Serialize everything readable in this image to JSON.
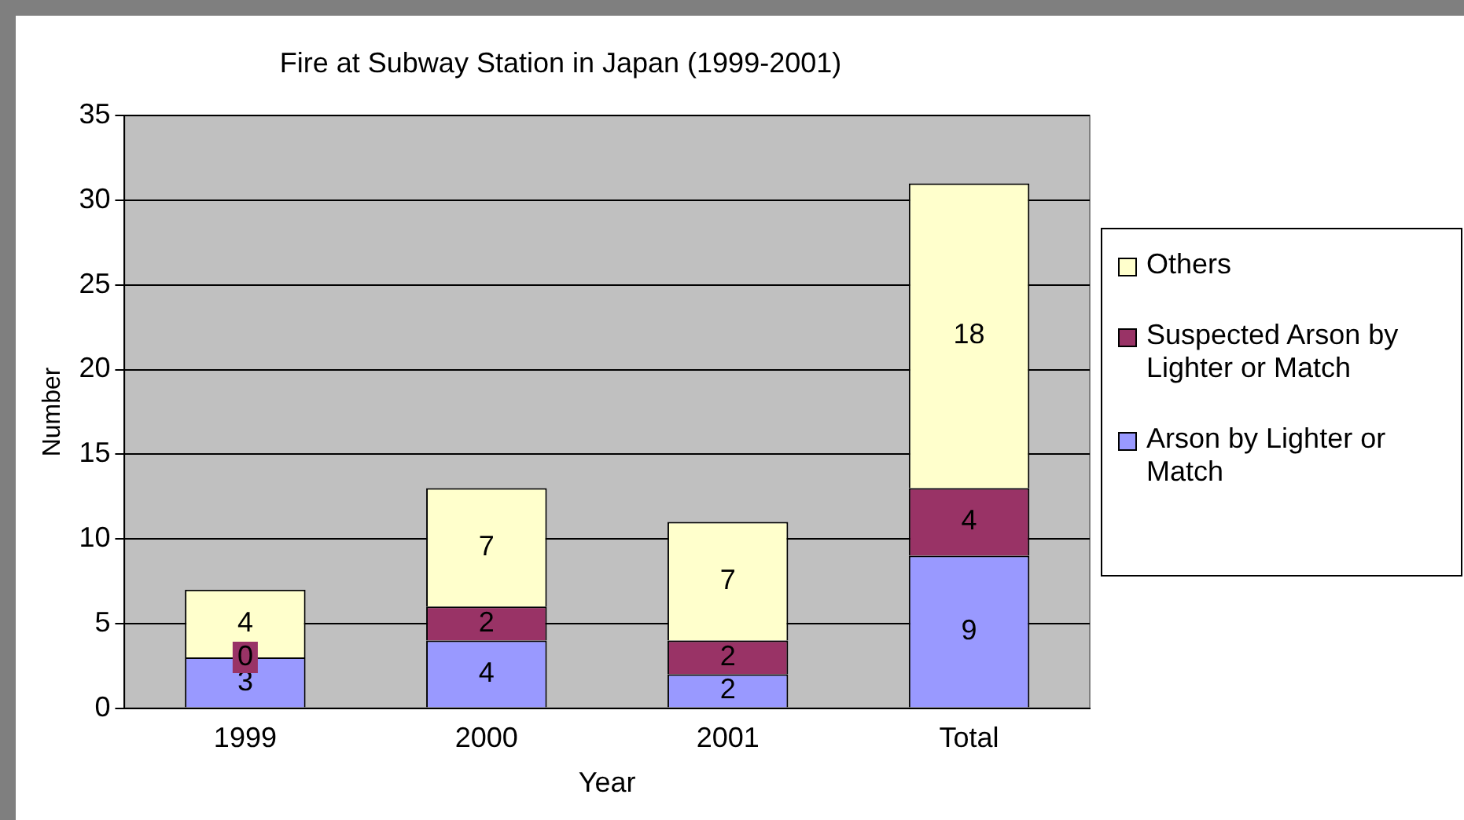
{
  "chart_data": {
    "type": "bar",
    "title": "Fire at Subway Station in Japan (1999-2001)",
    "xlabel": "Year",
    "ylabel": "Number",
    "categories": [
      "1999",
      "2000",
      "2001",
      "Total"
    ],
    "series": [
      {
        "name": "Arson by Lighter or Match",
        "color": "#9999ff",
        "values": [
          3,
          4,
          2,
          9
        ]
      },
      {
        "name": "Suspected Arson by Lighter or Match",
        "color": "#993366",
        "values": [
          0,
          2,
          2,
          4
        ]
      },
      {
        "name": "Others",
        "color": "#ffffcc",
        "values": [
          4,
          7,
          7,
          18
        ]
      }
    ],
    "stacked": true,
    "ylim": [
      0,
      35
    ],
    "yticks": [
      0,
      5,
      10,
      15,
      20,
      25,
      30,
      35
    ],
    "grid": "y",
    "legend": "right",
    "data_labels": true
  }
}
